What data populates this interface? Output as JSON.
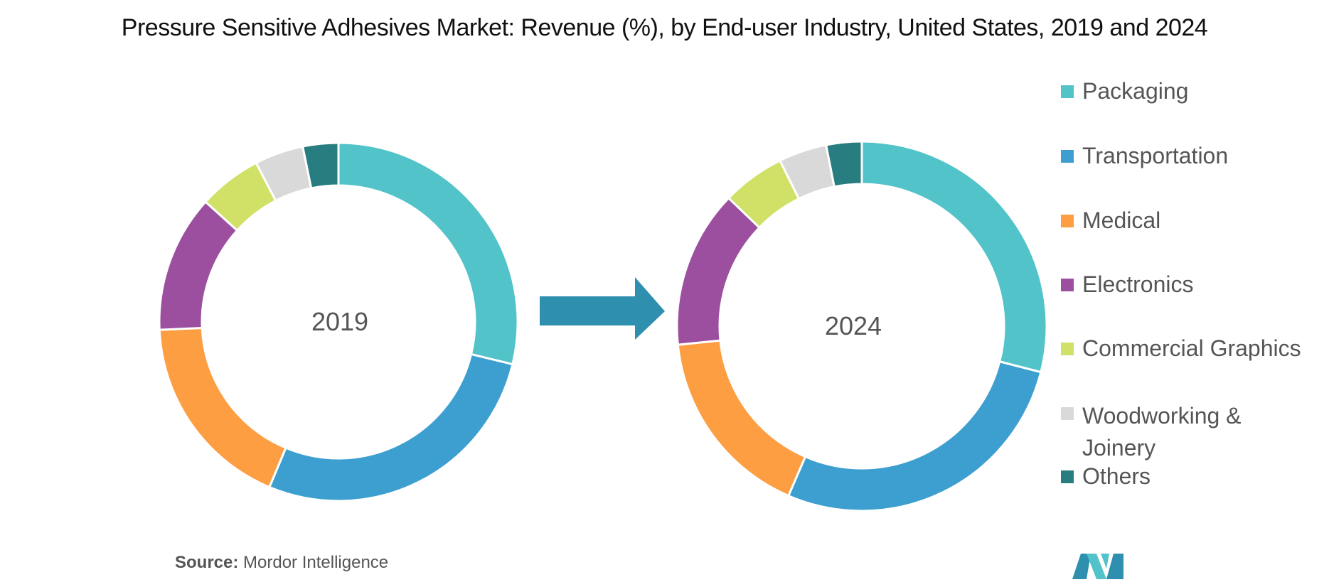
{
  "title": "Pressure Sensitive Adhesives Market: Revenue (%), by End-user Industry, United States, 2019 and 2024",
  "source_label": "Source:",
  "source_value": "Mordor Intelligence",
  "chart_data": [
    {
      "type": "pie",
      "variant": "donut",
      "center_label": "2019",
      "categories": [
        "Packaging",
        "Transportation",
        "Medical",
        "Electronics",
        "Commercial Graphics",
        "Woodworking & Joinery",
        "Others"
      ],
      "values": [
        28.8,
        27.5,
        18.0,
        12.4,
        5.7,
        4.4,
        3.2
      ]
    },
    {
      "type": "pie",
      "variant": "donut",
      "center_label": "2024",
      "categories": [
        "Packaging",
        "Transportation",
        "Medical",
        "Electronics",
        "Commercial Graphics",
        "Woodworking & Joinery",
        "Others"
      ],
      "values": [
        29.0,
        27.5,
        16.9,
        13.8,
        5.5,
        4.2,
        3.1
      ]
    }
  ],
  "legend": [
    {
      "label": "Packaging",
      "color": "#52c3c9"
    },
    {
      "label": "Transportation",
      "color": "#3d9fd0"
    },
    {
      "label": "Medical",
      "color": "#fd9e43"
    },
    {
      "label": "Electronics",
      "color": "#9b4f9e"
    },
    {
      "label": "Commercial Graphics",
      "color": "#d1e066"
    },
    {
      "label": "Woodworking & Joinery",
      "color": "#d9d9d9"
    },
    {
      "label": "Others",
      "color": "#277d7f"
    }
  ],
  "arrow_color": "#2f8faf",
  "legend_position": "right"
}
